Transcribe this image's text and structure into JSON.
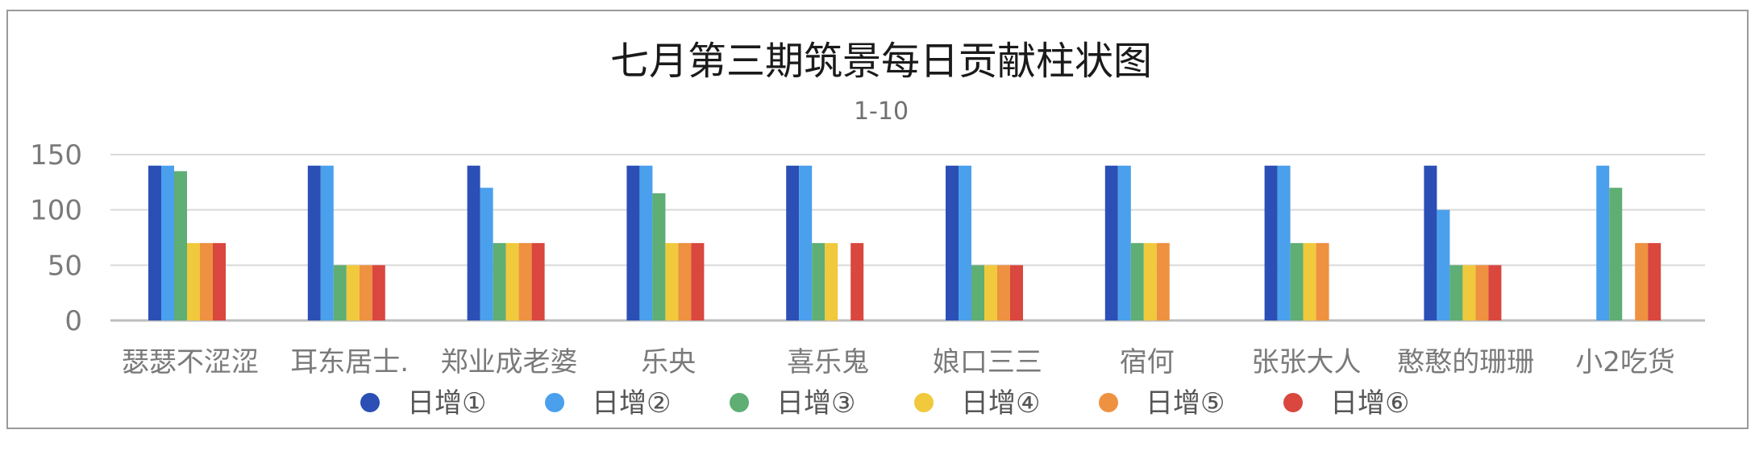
{
  "chart_data": {
    "type": "bar",
    "title": "七月第三期筑景每日贡献柱状图",
    "subtitle": "1-10",
    "xlabel": "",
    "ylabel": "",
    "ylim": [
      0,
      150
    ],
    "yticks": [
      0,
      50,
      100,
      150
    ],
    "grid": true,
    "legend_position": "bottom",
    "categories": [
      "瑟瑟不涩涩",
      "耳东居士.",
      "郑业成老婆",
      "乐央",
      "喜乐鬼",
      "娘口三三",
      "宿何",
      "张张大人",
      "憨憨的珊珊",
      "小2吃货"
    ],
    "series": [
      {
        "name": "日增①",
        "color": "#2b4fb5",
        "values": [
          140,
          140,
          140,
          140,
          140,
          140,
          140,
          140,
          140,
          null
        ]
      },
      {
        "name": "日增②",
        "color": "#4aa0ec",
        "values": [
          140,
          140,
          120,
          140,
          140,
          140,
          140,
          140,
          100,
          140
        ]
      },
      {
        "name": "日增③",
        "color": "#5fae74",
        "values": [
          135,
          50,
          70,
          115,
          70,
          50,
          70,
          70,
          50,
          120
        ]
      },
      {
        "name": "日增④",
        "color": "#f0c93c",
        "values": [
          70,
          50,
          70,
          70,
          70,
          50,
          70,
          70,
          50,
          null
        ]
      },
      {
        "name": "日增⑤",
        "color": "#ee9140",
        "values": [
          70,
          50,
          70,
          70,
          null,
          50,
          70,
          70,
          50,
          70
        ]
      },
      {
        "name": "日增⑥",
        "color": "#d9473e",
        "values": [
          70,
          50,
          70,
          70,
          70,
          50,
          null,
          null,
          50,
          70
        ]
      }
    ]
  }
}
